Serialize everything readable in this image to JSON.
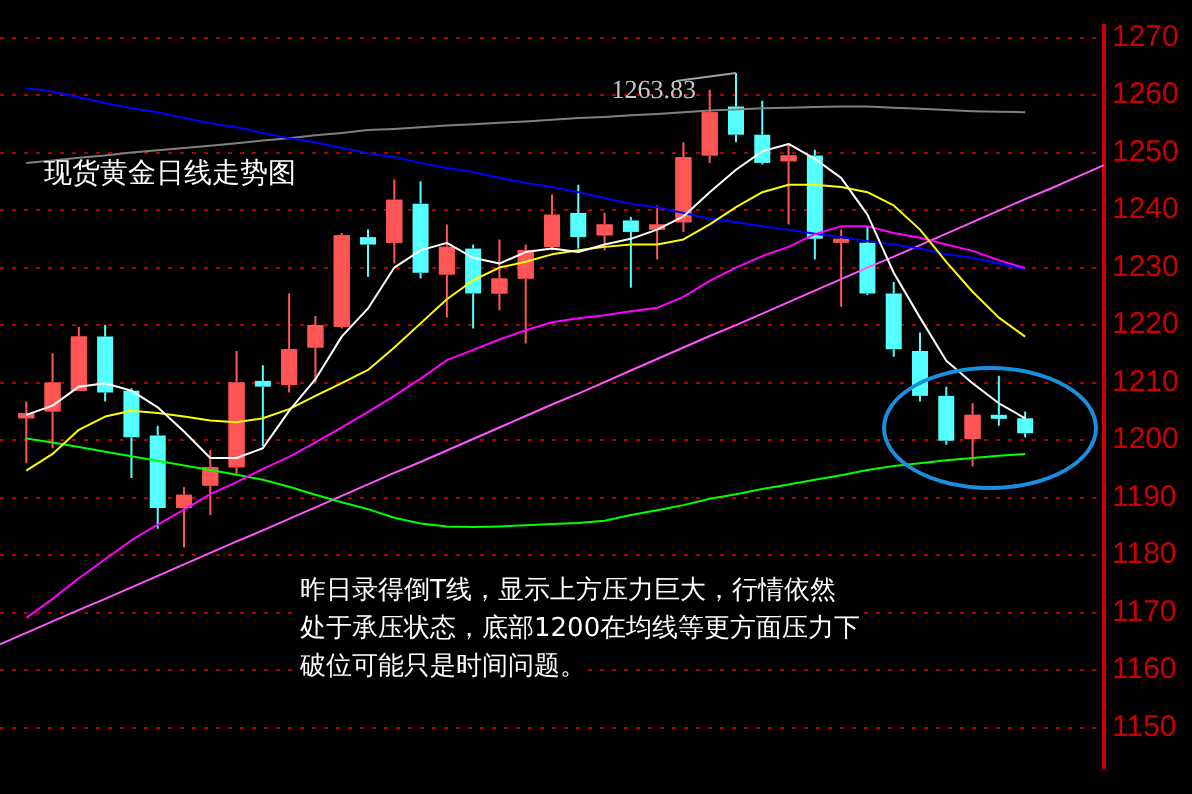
{
  "chart_data": {
    "type": "candlestick",
    "title": "现货黄金日线走势图",
    "categories": [
      null,
      null,
      null,
      null,
      null,
      null,
      null,
      null,
      null,
      null,
      null,
      null,
      null,
      null,
      null,
      null,
      null,
      null,
      null,
      null,
      null,
      null,
      null,
      null,
      null,
      null,
      null,
      null,
      null,
      null,
      null,
      null,
      null,
      null,
      null,
      null,
      null,
      null,
      null,
      null,
      null,
      null,
      null
    ],
    "ohlc": [
      null,
      [
        1203.8,
        1206.7,
        1196,
        1204.7
      ],
      [
        1205,
        1215.1,
        1198.6,
        1210
      ],
      [
        1208.6,
        1219.7,
        1208.6,
        1218
      ],
      [
        1218,
        1220,
        1206.7,
        1208.3
      ],
      [
        1208.6,
        1209,
        1193.4,
        1200.5
      ],
      [
        1200.8,
        1202.5,
        1184.6,
        1188.2
      ],
      [
        1188.2,
        1191.8,
        1181.4,
        1190.5
      ],
      [
        1192.1,
        1198.3,
        1187,
        1195.3
      ],
      [
        1195.3,
        1215.5,
        1194,
        1210
      ],
      [
        1210.3,
        1213,
        1199,
        1209.3
      ],
      [
        1209.6,
        1225.5,
        1208.3,
        1215.8
      ],
      [
        1216.1,
        1221.6,
        1210,
        1220
      ],
      [
        1219.7,
        1236,
        1219.4,
        1235.6
      ],
      [
        1235.3,
        1236.6,
        1228.4,
        1234
      ],
      [
        1234.3,
        1245.3,
        1230.7,
        1241.8
      ],
      [
        1241.1,
        1245,
        1228.1,
        1229.1
      ],
      [
        1228.8,
        1237.5,
        1221.3,
        1233.6
      ],
      [
        1233.3,
        1234,
        1219.4,
        1225.5
      ],
      [
        1225.5,
        1234.9,
        1222.6,
        1228.1
      ],
      [
        1228.1,
        1234,
        1216.8,
        1233
      ],
      [
        1233.6,
        1242.7,
        1233,
        1239.2
      ],
      [
        1239.5,
        1244.4,
        1233.3,
        1235.3
      ],
      [
        1235.6,
        1239.5,
        1233,
        1237.5
      ],
      [
        1238.2,
        1238.8,
        1226.5,
        1236.2
      ],
      [
        1236.6,
        1240.8,
        1231.4,
        1237.5
      ],
      [
        1237.9,
        1251.8,
        1236.2,
        1249.2
      ],
      [
        1249.5,
        1260.9,
        1248.2,
        1257
      ],
      [
        1258,
        1263.83,
        1251.8,
        1253.1
      ],
      [
        1253.1,
        1259,
        1247.9,
        1248.2
      ],
      [
        1248.5,
        1251.5,
        1237.5,
        1249.5
      ],
      [
        1249.5,
        1250.5,
        1231.4,
        1235
      ],
      [
        1234.6,
        1236.6,
        1223.2,
        1235
      ],
      [
        1234.3,
        1237.2,
        1225.2,
        1225.5
      ],
      [
        1225.5,
        1227.5,
        1214.5,
        1215.8
      ],
      [
        1215.5,
        1218.7,
        1206.7,
        1207.7
      ],
      [
        1207.7,
        1209.3,
        1199.2,
        1199.9
      ],
      [
        1200.2,
        1206.4,
        1195.4,
        1204.4
      ],
      [
        1204.4,
        1211.2,
        1202.5,
        1203.8
      ],
      [
        1203.8,
        1205,
        1200.5,
        1201.2
      ],
      null,
      null,
      null
    ],
    "colors": [
      null,
      "#ff5555",
      "#ff5555",
      "#ff5555",
      "#54ffff",
      "#54ffff",
      "#54ffff",
      "#ff5555",
      "#ff5555",
      "#ff5555",
      "#54ffff",
      "#ff5555",
      "#ff5555",
      "#ff5555",
      "#54ffff",
      "#ff5555",
      "#54ffff",
      "#ff5555",
      "#54ffff",
      "#ff5555",
      "#ff5555",
      "#ff5555",
      "#54ffff",
      "#ff5555",
      "#54ffff",
      "#ff5555",
      "#ff5555",
      "#ff5555",
      "#54ffff",
      "#54ffff",
      "#ff5555",
      "#54ffff",
      "#ff5555",
      "#54ffff",
      "#54ffff",
      "#54ffff",
      "#54ffff",
      "#ff5555",
      "#54ffff",
      "#54ffff",
      null,
      null,
      null
    ],
    "series": [
      {
        "type": "line",
        "color": "#ffffff",
        "values": [
          null,
          1204.4,
          1206,
          1209.3,
          1209.9,
          1208.6,
          1205.7,
          1201.5,
          1196.9,
          1196.9,
          1198.6,
          1205.1,
          1210.6,
          1218,
          1222.9,
          1230,
          1233,
          1234.3,
          1231.7,
          1230.7,
          1232.7,
          1233.3,
          1232.7,
          1234,
          1235,
          1236.6,
          1238.9,
          1243.1,
          1247,
          1250.2,
          1251.5,
          1248.9,
          1245.6,
          1239.2,
          1229.1,
          1221.3,
          1213.8,
          1209.9,
          1206.4,
          1203.8,
          null,
          null,
          null
        ]
      },
      {
        "type": "line",
        "color": "#ffff00",
        "values": [
          null,
          1194.7,
          1197.6,
          1201.8,
          1204.1,
          1205.1,
          1204.7,
          1204.1,
          1203.4,
          1203.1,
          1203.8,
          1205.4,
          1207.7,
          1209.9,
          1212.2,
          1216.1,
          1220.3,
          1224.5,
          1227.8,
          1230,
          1231,
          1232.3,
          1233,
          1233.6,
          1234,
          1234,
          1234.9,
          1237.5,
          1240.5,
          1243.1,
          1244.4,
          1244.4,
          1244,
          1243.1,
          1240.8,
          1236.6,
          1231,
          1225.8,
          1221.3,
          1218,
          null,
          null,
          null
        ]
      },
      {
        "type": "line",
        "color": "#ff00ff",
        "values": [
          null,
          1169.1,
          1172.4,
          1176,
          1179.3,
          1182.6,
          1185.3,
          1187.9,
          1190.6,
          1192.7,
          1195,
          1197.1,
          1199.6,
          1202.2,
          1204.9,
          1207.7,
          1210.7,
          1213.9,
          1215.7,
          1217.5,
          1219.1,
          1220.5,
          1221.2,
          1221.7,
          1222.4,
          1223,
          1224.9,
          1227.7,
          1230,
          1232,
          1233.6,
          1235.8,
          1237.2,
          1237.2,
          1236,
          1235.2,
          1234,
          1232.9,
          1231.3,
          1229.9,
          null,
          null,
          null
        ]
      },
      {
        "type": "line",
        "color": "#0000ff",
        "values": [
          null,
          1261.2,
          1260.6,
          1259.6,
          1258.6,
          1257.7,
          1257,
          1256,
          1255.1,
          1254.4,
          1253.4,
          1252.5,
          1251.8,
          1250.8,
          1249.9,
          1249.2,
          1248.2,
          1247.3,
          1246.6,
          1245.6,
          1244.7,
          1244,
          1243.1,
          1242.1,
          1241.1,
          1240.5,
          1239.5,
          1238.5,
          1237.9,
          1237.2,
          1236.6,
          1235.9,
          1235.3,
          1234.6,
          1234,
          1233.3,
          1232.3,
          1231.7,
          1230.7,
          1229.7,
          null,
          null,
          null
        ]
      },
      {
        "type": "line",
        "color": "#808080",
        "values": [
          null,
          1248.2,
          1248.6,
          1249.1,
          1249.5,
          1250,
          1250.4,
          1250.8,
          1251.2,
          1251.6,
          1252.1,
          1252.5,
          1253,
          1253.4,
          1253.9,
          1254.1,
          1254.4,
          1254.7,
          1254.9,
          1255.2,
          1255.4,
          1255.7,
          1256,
          1256.2,
          1256.5,
          1256.7,
          1257,
          1257.3,
          1257.5,
          1257.7,
          1257.8,
          1257.9,
          1258,
          1258,
          1257.8,
          1257.6,
          1257.4,
          1257.2,
          1257.1,
          1257,
          null,
          null,
          null
        ]
      },
      {
        "type": "line",
        "color": "#00ff00",
        "values": [
          null,
          1200.3,
          1199.6,
          1198.8,
          1198,
          1197.2,
          1196.4,
          1195.6,
          1194.8,
          1194,
          1193.1,
          1191.9,
          1190.5,
          1189.2,
          1188,
          1186.5,
          1185.5,
          1185,
          1184.9,
          1185,
          1185.2,
          1185.4,
          1185.6,
          1186,
          1187,
          1187.8,
          1188.7,
          1189.8,
          1190.6,
          1191.5,
          1192.3,
          1193.1,
          1193.9,
          1194.8,
          1195.5,
          1196,
          1196.5,
          1196.9,
          1197.3,
          1197.6,
          null,
          null,
          null
        ]
      },
      {
        "type": "line",
        "color": "#ff55ff",
        "values": [
          1164.5,
          1166.5,
          1168.5,
          1170.5,
          1172.4,
          1174.4,
          1176.4,
          1178.4,
          1180.4,
          1182.4,
          1184.3,
          1186.3,
          1188.3,
          1190.3,
          1192.3,
          1194.3,
          1196.2,
          1198.2,
          1200.2,
          1202.2,
          1204.2,
          1206.2,
          1208.1,
          1210.1,
          1212.1,
          1214.1,
          1216.1,
          1218.1,
          1220,
          1222,
          1224,
          1226,
          1228,
          1230,
          1231.9,
          1233.9,
          1235.9,
          1237.9,
          1239.9,
          1241.9,
          1243.8,
          1245.8,
          1247.8
        ]
      }
    ],
    "ylim": [
      1143,
      1272
    ],
    "yticks": [
      1150,
      1160,
      1170,
      1180,
      1190,
      1200,
      1210,
      1220,
      1230,
      1240,
      1250,
      1260,
      1270
    ],
    "grid": "y",
    "legend": false,
    "tick_labels": "y",
    "marker": "none",
    "line_style": "solid",
    "annotations": [
      "昨日录得倒T线，显示上方压力巨大，行情依然",
      "处于承压状态，底部1200在均线等更方面压力下",
      "破位可能只是时间问题。",
      "1263.83"
    ]
  }
}
